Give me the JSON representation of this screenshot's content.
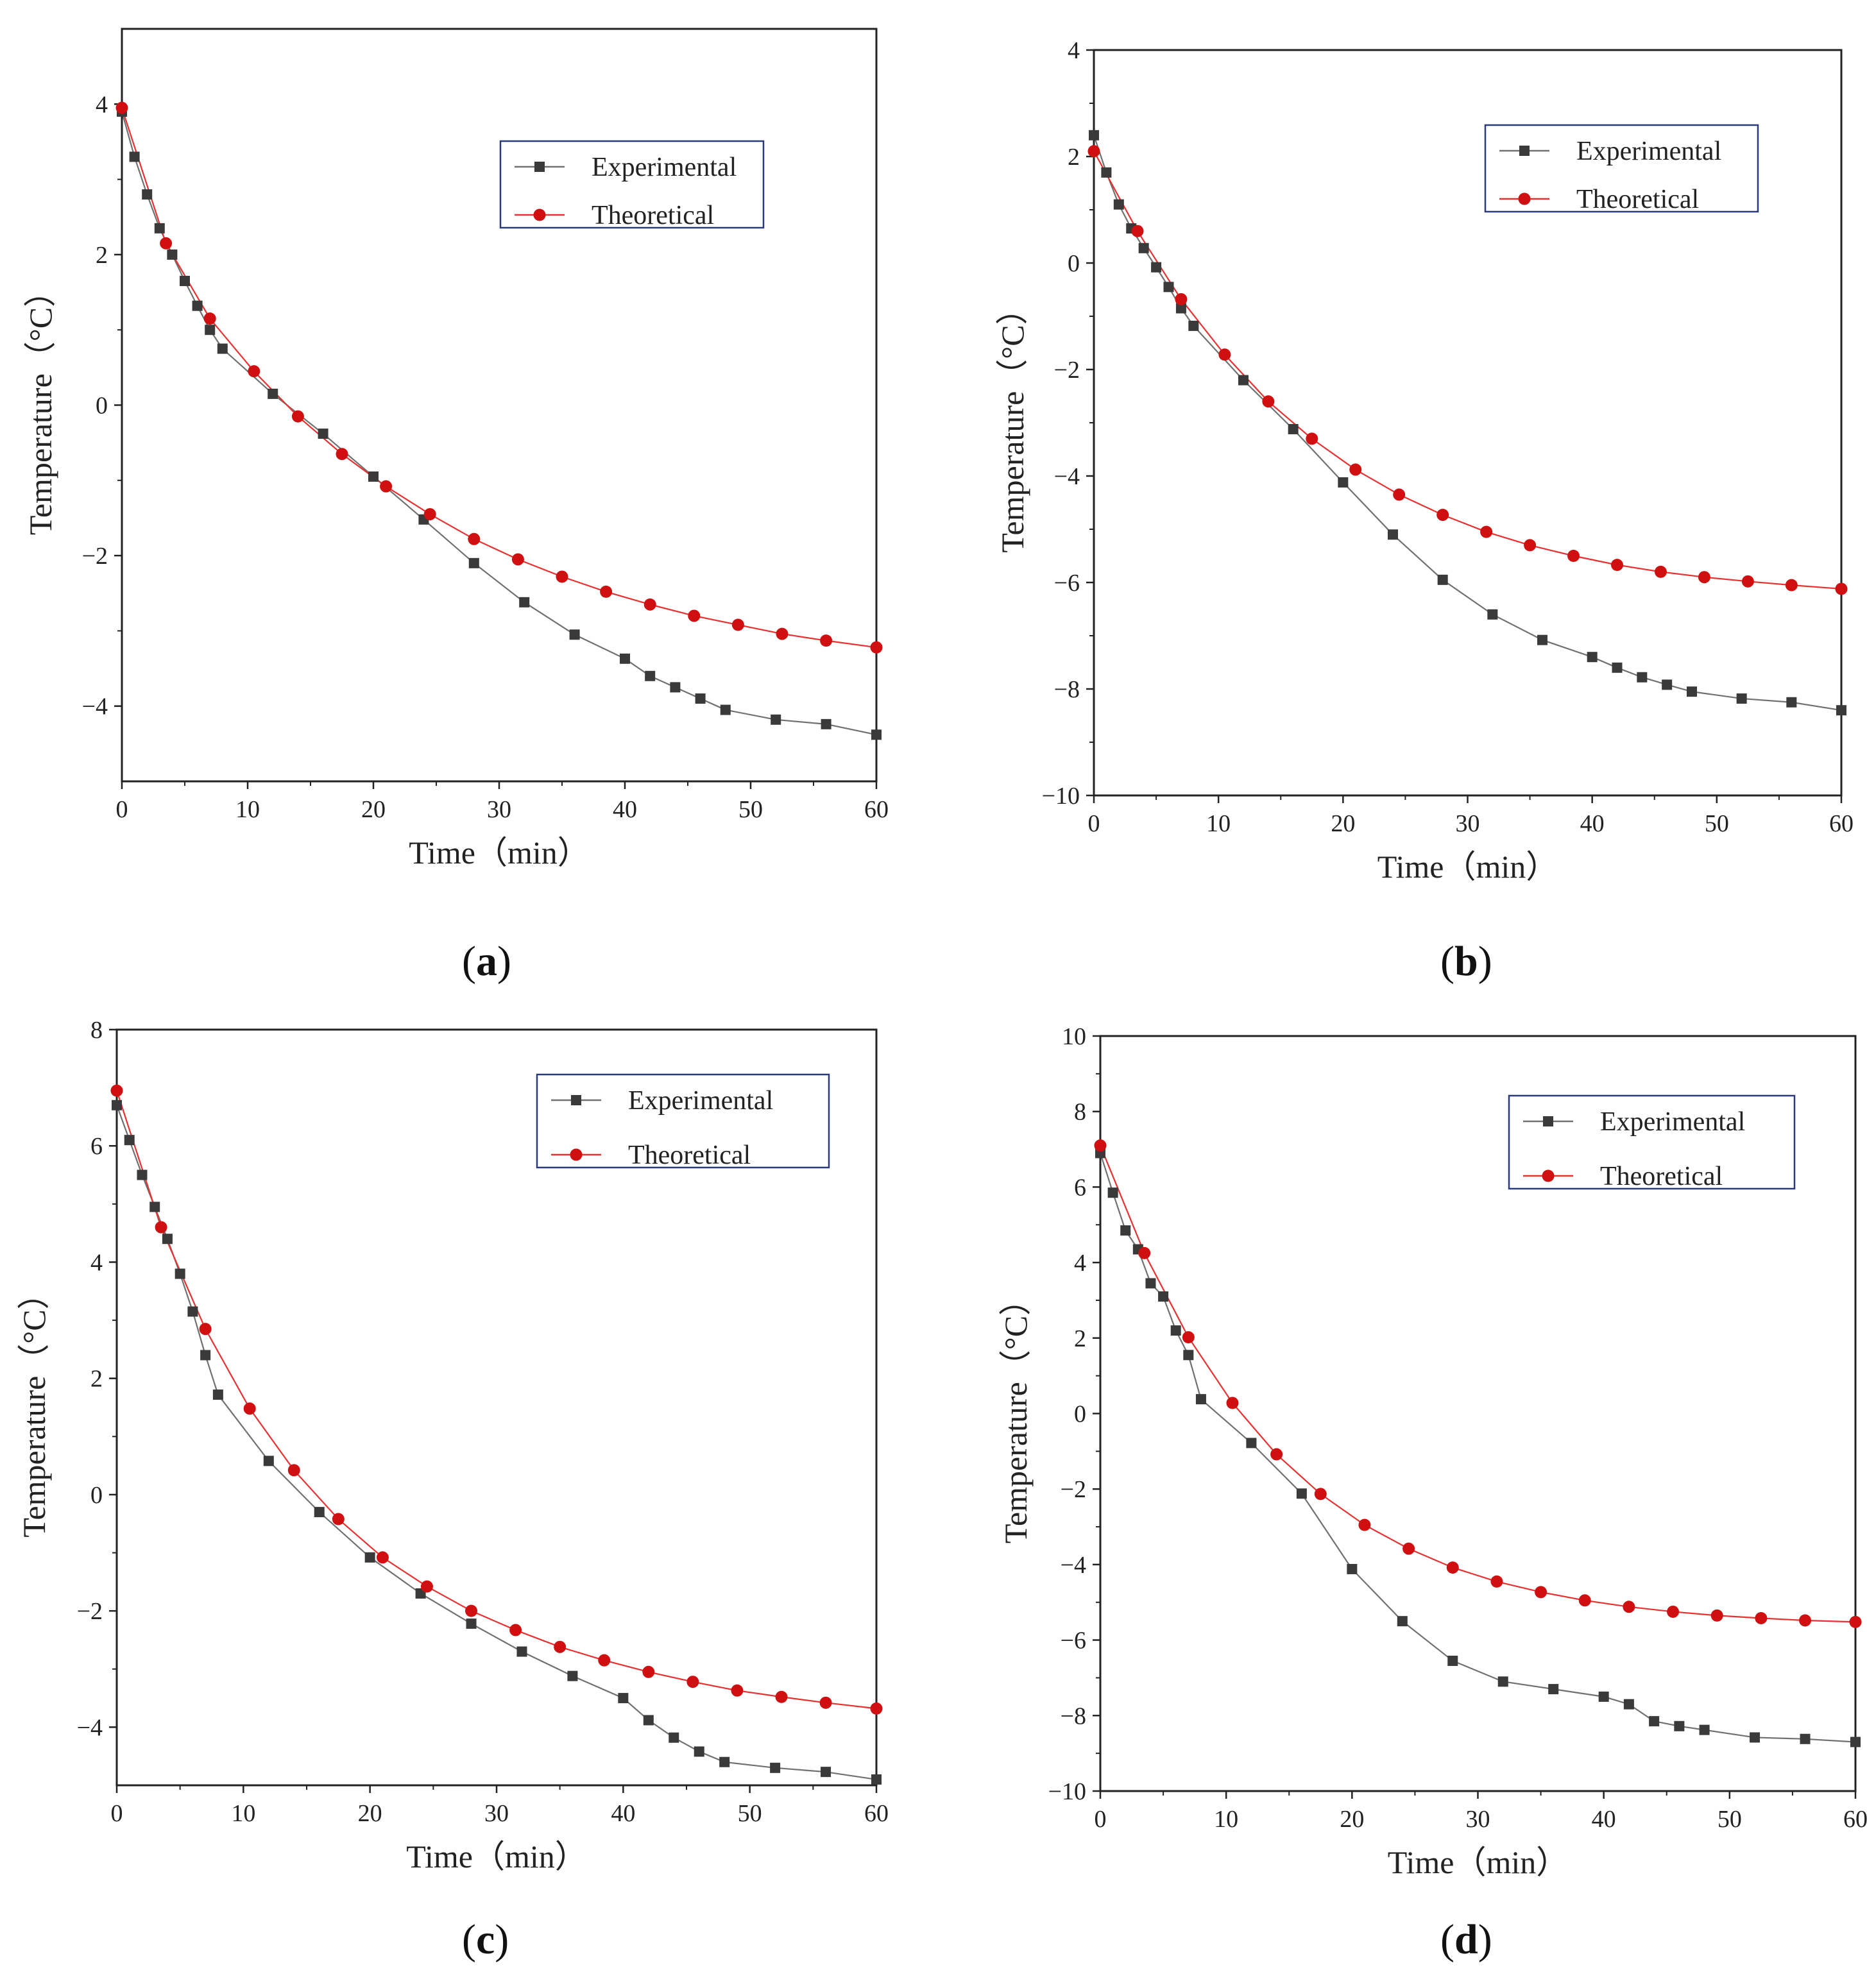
{
  "colors": {
    "experimental": "#3a3a3a",
    "experimental_line": "#707070",
    "theoretical": "#d01010",
    "theoretical_line": "#e83030",
    "axis": "#222222",
    "legend_border": "#2a3a7a"
  },
  "chart_data": [
    {
      "type": "line",
      "panel_label": "a",
      "xlabel": "Time（min）",
      "ylabel": "Temperature（°C）",
      "xlim": [
        0,
        60
      ],
      "ylim": [
        -5,
        5
      ],
      "xticks": [
        0,
        10,
        20,
        30,
        40,
        50,
        60
      ],
      "yticks": [
        -4,
        -2,
        0,
        2,
        4
      ],
      "legend_position": "top-right",
      "series": [
        {
          "name": "Experimental",
          "marker": "square",
          "points": [
            [
              0,
              3.9
            ],
            [
              1,
              3.3
            ],
            [
              2,
              2.8
            ],
            [
              3,
              2.35
            ],
            [
              4,
              2.0
            ],
            [
              5,
              1.65
            ],
            [
              6,
              1.32
            ],
            [
              7,
              1.0
            ],
            [
              8,
              0.75
            ],
            [
              12,
              0.15
            ],
            [
              16,
              -0.38
            ],
            [
              20,
              -0.95
            ],
            [
              24,
              -1.52
            ],
            [
              28,
              -2.1
            ],
            [
              32,
              -2.62
            ],
            [
              36,
              -3.05
            ],
            [
              40,
              -3.37
            ],
            [
              42,
              -3.6
            ],
            [
              44,
              -3.75
            ],
            [
              46,
              -3.9
            ],
            [
              48,
              -4.05
            ],
            [
              52,
              -4.18
            ],
            [
              56,
              -4.24
            ],
            [
              60,
              -4.38
            ]
          ]
        },
        {
          "name": "Theoretical",
          "marker": "circle",
          "points": [
            [
              0,
              3.95
            ],
            [
              3.5,
              2.15
            ],
            [
              7,
              1.15
            ],
            [
              10.5,
              0.45
            ],
            [
              14,
              -0.15
            ],
            [
              17.5,
              -0.65
            ],
            [
              21,
              -1.08
            ],
            [
              24.5,
              -1.45
            ],
            [
              28,
              -1.78
            ],
            [
              31.5,
              -2.05
            ],
            [
              35,
              -2.28
            ],
            [
              38.5,
              -2.48
            ],
            [
              42,
              -2.65
            ],
            [
              45.5,
              -2.8
            ],
            [
              49,
              -2.92
            ],
            [
              52.5,
              -3.04
            ],
            [
              56,
              -3.13
            ],
            [
              60,
              -3.22
            ]
          ]
        }
      ]
    },
    {
      "type": "line",
      "panel_label": "b",
      "xlabel": "Time（min）",
      "ylabel": "Temperature（°C）",
      "xlim": [
        0,
        60
      ],
      "ylim": [
        -10,
        4
      ],
      "xticks": [
        0,
        10,
        20,
        30,
        40,
        50,
        60
      ],
      "yticks": [
        -10,
        -8,
        -6,
        -4,
        -2,
        0,
        2,
        4
      ],
      "legend_position": "top-right",
      "series": [
        {
          "name": "Experimental",
          "marker": "square",
          "points": [
            [
              0,
              2.4
            ],
            [
              1,
              1.7
            ],
            [
              2,
              1.1
            ],
            [
              3,
              0.65
            ],
            [
              4,
              0.28
            ],
            [
              5,
              -0.08
            ],
            [
              6,
              -0.45
            ],
            [
              7,
              -0.85
            ],
            [
              8,
              -1.18
            ],
            [
              12,
              -2.2
            ],
            [
              16,
              -3.12
            ],
            [
              20,
              -4.12
            ],
            [
              24,
              -5.1
            ],
            [
              28,
              -5.95
            ],
            [
              32,
              -6.6
            ],
            [
              36,
              -7.08
            ],
            [
              40,
              -7.4
            ],
            [
              42,
              -7.6
            ],
            [
              44,
              -7.78
            ],
            [
              46,
              -7.92
            ],
            [
              48,
              -8.05
            ],
            [
              52,
              -8.18
            ],
            [
              56,
              -8.25
            ],
            [
              60,
              -8.4
            ]
          ]
        },
        {
          "name": "Theoretical",
          "marker": "circle",
          "points": [
            [
              0,
              2.1
            ],
            [
              3.5,
              0.6
            ],
            [
              7,
              -0.68
            ],
            [
              10.5,
              -1.72
            ],
            [
              14,
              -2.6
            ],
            [
              17.5,
              -3.3
            ],
            [
              21,
              -3.88
            ],
            [
              24.5,
              -4.35
            ],
            [
              28,
              -4.73
            ],
            [
              31.5,
              -5.05
            ],
            [
              35,
              -5.3
            ],
            [
              38.5,
              -5.5
            ],
            [
              42,
              -5.67
            ],
            [
              45.5,
              -5.8
            ],
            [
              49,
              -5.9
            ],
            [
              52.5,
              -5.98
            ],
            [
              56,
              -6.05
            ],
            [
              60,
              -6.12
            ]
          ]
        }
      ]
    },
    {
      "type": "line",
      "panel_label": "c",
      "xlabel": "Time（min）",
      "ylabel": "Temperature（°C）",
      "xlim": [
        0,
        60
      ],
      "ylim": [
        -5,
        8
      ],
      "xticks": [
        0,
        10,
        20,
        30,
        40,
        50,
        60
      ],
      "yticks": [
        -4,
        -2,
        0,
        2,
        4,
        6,
        8
      ],
      "legend_position": "top-right",
      "series": [
        {
          "name": "Experimental",
          "marker": "square",
          "points": [
            [
              0,
              6.7
            ],
            [
              1,
              6.1
            ],
            [
              2,
              5.5
            ],
            [
              3,
              4.95
            ],
            [
              4,
              4.4
            ],
            [
              5,
              3.8
            ],
            [
              6,
              3.15
            ],
            [
              7,
              2.4
            ],
            [
              8,
              1.72
            ],
            [
              12,
              0.58
            ],
            [
              16,
              -0.3
            ],
            [
              20,
              -1.08
            ],
            [
              24,
              -1.7
            ],
            [
              28,
              -2.22
            ],
            [
              32,
              -2.7
            ],
            [
              36,
              -3.12
            ],
            [
              40,
              -3.5
            ],
            [
              42,
              -3.88
            ],
            [
              44,
              -4.18
            ],
            [
              46,
              -4.42
            ],
            [
              48,
              -4.6
            ],
            [
              52,
              -4.7
            ],
            [
              56,
              -4.77
            ],
            [
              60,
              -4.9
            ]
          ]
        },
        {
          "name": "Theoretical",
          "marker": "circle",
          "points": [
            [
              0,
              6.95
            ],
            [
              3.5,
              4.6
            ],
            [
              7,
              2.85
            ],
            [
              10.5,
              1.48
            ],
            [
              14,
              0.42
            ],
            [
              17.5,
              -0.42
            ],
            [
              21,
              -1.08
            ],
            [
              24.5,
              -1.58
            ],
            [
              28,
              -2.0
            ],
            [
              31.5,
              -2.33
            ],
            [
              35,
              -2.62
            ],
            [
              38.5,
              -2.85
            ],
            [
              42,
              -3.05
            ],
            [
              45.5,
              -3.22
            ],
            [
              49,
              -3.37
            ],
            [
              52.5,
              -3.48
            ],
            [
              56,
              -3.58
            ],
            [
              60,
              -3.68
            ]
          ]
        }
      ]
    },
    {
      "type": "line",
      "panel_label": "d",
      "xlabel": "Time（min）",
      "ylabel": "Temperature（°C）",
      "xlim": [
        0,
        60
      ],
      "ylim": [
        -10,
        10
      ],
      "xticks": [
        0,
        10,
        20,
        30,
        40,
        50,
        60
      ],
      "yticks": [
        -10,
        -8,
        -6,
        -4,
        -2,
        0,
        2,
        4,
        6,
        8,
        10
      ],
      "legend_position": "top-right",
      "series": [
        {
          "name": "Experimental",
          "marker": "square",
          "points": [
            [
              0,
              6.9
            ],
            [
              1,
              5.85
            ],
            [
              2,
              4.85
            ],
            [
              3,
              4.35
            ],
            [
              4,
              3.45
            ],
            [
              5,
              3.1
            ],
            [
              6,
              2.2
            ],
            [
              7,
              1.55
            ],
            [
              8,
              0.38
            ],
            [
              12,
              -0.78
            ],
            [
              16,
              -2.12
            ],
            [
              20,
              -4.12
            ],
            [
              24,
              -5.5
            ],
            [
              28,
              -6.55
            ],
            [
              32,
              -7.1
            ],
            [
              36,
              -7.3
            ],
            [
              40,
              -7.5
            ],
            [
              42,
              -7.7
            ],
            [
              44,
              -8.15
            ],
            [
              46,
              -8.28
            ],
            [
              48,
              -8.38
            ],
            [
              52,
              -8.58
            ],
            [
              56,
              -8.62
            ],
            [
              60,
              -8.7
            ]
          ]
        },
        {
          "name": "Theoretical",
          "marker": "circle",
          "points": [
            [
              0,
              7.1
            ],
            [
              3.5,
              4.25
            ],
            [
              7,
              2.02
            ],
            [
              10.5,
              0.28
            ],
            [
              14,
              -1.08
            ],
            [
              17.5,
              -2.13
            ],
            [
              21,
              -2.95
            ],
            [
              24.5,
              -3.58
            ],
            [
              28,
              -4.08
            ],
            [
              31.5,
              -4.45
            ],
            [
              35,
              -4.73
            ],
            [
              38.5,
              -4.95
            ],
            [
              42,
              -5.12
            ],
            [
              45.5,
              -5.25
            ],
            [
              49,
              -5.35
            ],
            [
              52.5,
              -5.42
            ],
            [
              56,
              -5.48
            ],
            [
              60,
              -5.52
            ]
          ]
        }
      ]
    }
  ]
}
